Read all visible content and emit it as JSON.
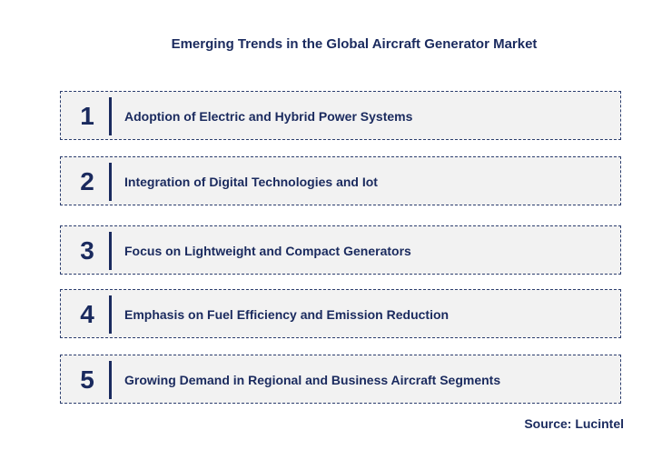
{
  "title": "Emerging Trends in the Global Aircraft Generator Market",
  "items": [
    {
      "number": "1",
      "label": "Adoption of Electric and Hybrid Power Systems"
    },
    {
      "number": "2",
      "label": "Integration of Digital Technologies and Iot"
    },
    {
      "number": "3",
      "label": "Focus on Lightweight and Compact Generators"
    },
    {
      "number": "4",
      "label": "Emphasis on Fuel Efficiency and Emission Reduction"
    },
    {
      "number": "5",
      "label": "Growing Demand in Regional and Business Aircraft Segments"
    }
  ],
  "source": "Source: Lucintel"
}
